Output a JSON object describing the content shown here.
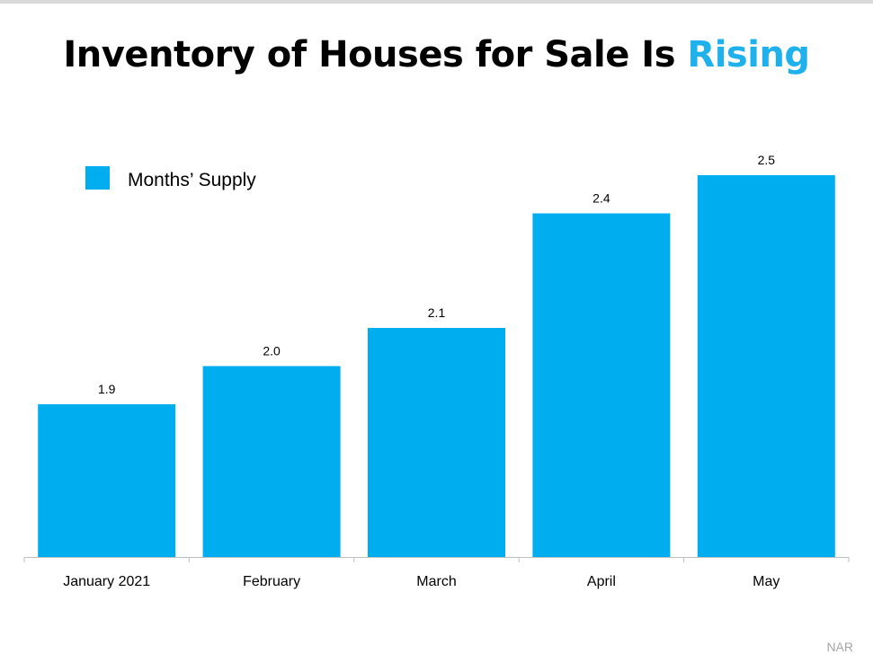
{
  "title": {
    "main": "Inventory of Houses for Sale Is ",
    "highlight": "Rising"
  },
  "source": "NAR",
  "colors": {
    "bar": "#00aeef",
    "title_accent": "#1fb1ec",
    "axis": "#bfbfbf",
    "source_text": "#a6a6a6"
  },
  "chart_data": {
    "type": "bar",
    "categories": [
      "January 2021",
      "February",
      "March",
      "April",
      "May"
    ],
    "series": [
      {
        "name": "Months’ Supply",
        "values": [
          1.9,
          2.0,
          2.1,
          2.4,
          2.5
        ],
        "labels": [
          "1.9",
          "2.0",
          "2.1",
          "2.4",
          "2.5"
        ]
      }
    ],
    "title": "Inventory of Houses for Sale Is Rising",
    "xlabel": "",
    "ylabel": "",
    "ylim": [
      1.5,
      2.5
    ],
    "y_axis_visible": false,
    "grid": false,
    "legend_position": "top-left",
    "data_labels": true
  }
}
